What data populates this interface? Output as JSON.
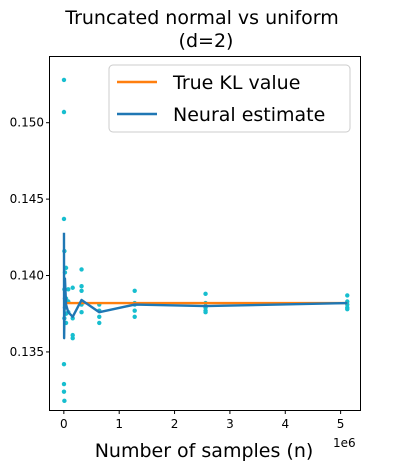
{
  "chart_data": {
    "type": "line",
    "title_line1": "Truncated normal vs uniform",
    "title_line2": "(d=2)",
    "xlabel": "Number of samples (n)",
    "ylabel": "",
    "x_offset_label": "1e6",
    "xlim": [
      -0.25,
      5.35
    ],
    "ylim": [
      0.1312,
      0.1543
    ],
    "xticks": [
      0,
      1,
      2,
      3,
      4,
      5
    ],
    "xtick_labels": [
      "0",
      "1",
      "2",
      "3",
      "4",
      "5"
    ],
    "yticks": [
      0.135,
      0.14,
      0.145,
      0.15
    ],
    "ytick_labels": [
      "0.135",
      "0.140",
      "0.145",
      "0.150"
    ],
    "grid": false,
    "legend_position": "top-right",
    "series": [
      {
        "name": "True KL value",
        "color": "#ff7f0e",
        "x": [
          0.0025,
          5.12
        ],
        "y": [
          0.1382,
          0.1382
        ]
      },
      {
        "name": "Neural estimate",
        "color": "#1f77b4",
        "x": [
          0.0025,
          0.005,
          0.01,
          0.02,
          0.04,
          0.08,
          0.16,
          0.32,
          0.64,
          1.28,
          2.56,
          5.12
        ],
        "y": [
          0.1428,
          0.1359,
          0.1372,
          0.1398,
          0.1381,
          0.1376,
          0.1373,
          0.1384,
          0.1376,
          0.1381,
          0.138,
          0.1382
        ]
      }
    ],
    "scatter": {
      "color": "#17becf",
      "points": [
        [
          0.0025,
          0.1528
        ],
        [
          0.0025,
          0.1507
        ],
        [
          0.0025,
          0.1437
        ],
        [
          0.0025,
          0.1342
        ],
        [
          0.0025,
          0.1329
        ],
        [
          0.0025,
          0.1324
        ],
        [
          0.01,
          0.1416
        ],
        [
          0.01,
          0.1391
        ],
        [
          0.01,
          0.1372
        ],
        [
          0.01,
          0.1318
        ],
        [
          0.02,
          0.1402
        ],
        [
          0.02,
          0.1385
        ],
        [
          0.02,
          0.1379
        ],
        [
          0.04,
          0.1405
        ],
        [
          0.04,
          0.1385
        ],
        [
          0.04,
          0.1375
        ],
        [
          0.04,
          0.1369
        ],
        [
          0.08,
          0.1391
        ],
        [
          0.08,
          0.1383
        ],
        [
          0.08,
          0.1376
        ],
        [
          0.16,
          0.1392
        ],
        [
          0.16,
          0.1372
        ],
        [
          0.16,
          0.1361
        ],
        [
          0.16,
          0.1359
        ],
        [
          0.32,
          0.1404
        ],
        [
          0.32,
          0.1393
        ],
        [
          0.32,
          0.139
        ],
        [
          0.32,
          0.1381
        ],
        [
          0.32,
          0.1376
        ],
        [
          0.64,
          0.1381
        ],
        [
          0.64,
          0.1377
        ],
        [
          0.64,
          0.1373
        ],
        [
          0.64,
          0.1369
        ],
        [
          1.28,
          0.139
        ],
        [
          1.28,
          0.1382
        ],
        [
          1.28,
          0.1381
        ],
        [
          1.28,
          0.1377
        ],
        [
          1.28,
          0.1373
        ],
        [
          2.56,
          0.1388
        ],
        [
          2.56,
          0.1382
        ],
        [
          2.56,
          0.1379
        ],
        [
          2.56,
          0.1377
        ],
        [
          2.56,
          0.1376
        ],
        [
          5.12,
          0.1387
        ],
        [
          5.12,
          0.1383
        ],
        [
          5.12,
          0.1381
        ],
        [
          5.12,
          0.1379
        ],
        [
          5.12,
          0.1378
        ]
      ]
    }
  }
}
